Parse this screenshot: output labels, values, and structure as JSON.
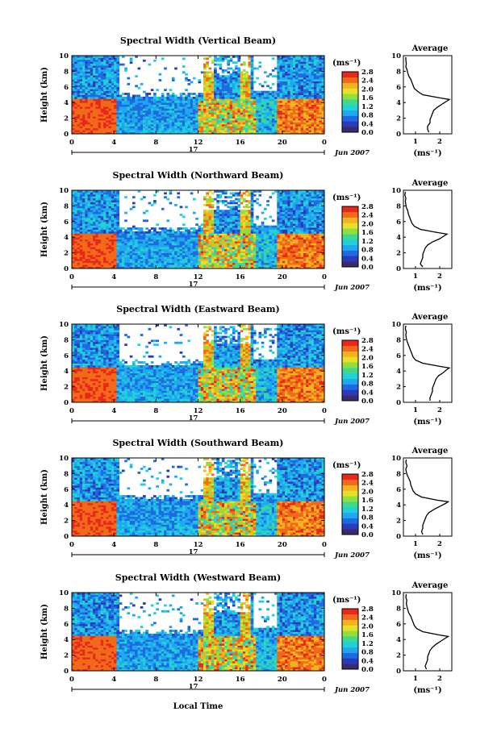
{
  "figure": {
    "xlabel": "Local Time",
    "date_label": "Jun 2007",
    "day_label": "17",
    "colorbar_unit": "(ms⁻¹)",
    "avg_title": "Average",
    "avg_xlabel": "(ms⁻¹)",
    "ylabel": "Height (km)"
  },
  "colors": {
    "scale": [
      "#3a2a6e",
      "#2a3ab8",
      "#1f6ae0",
      "#1fa8f0",
      "#22d0d8",
      "#3ed88f",
      "#8fe03a",
      "#e6e02a",
      "#f5b21f",
      "#f06a1a",
      "#e8281a"
    ],
    "missing": "#ffffff"
  },
  "chart_data": [
    {
      "type": "heatmap",
      "title": "Spectral Width (Vertical Beam)",
      "xlabel": "Local Time",
      "ylabel": "Height (km)",
      "x_ticks": [
        "0",
        "4",
        "8",
        "12",
        "16",
        "20",
        "0"
      ],
      "y_ticks": [
        "0",
        "2",
        "4",
        "6",
        "8",
        "10"
      ],
      "xlim": [
        0,
        24
      ],
      "ylim": [
        0,
        10
      ],
      "colorbar": {
        "label": "(ms⁻¹)",
        "ticks": [
          "0.0",
          "0.4",
          "0.8",
          "1.2",
          "1.6",
          "2.0",
          "2.4",
          "2.8"
        ],
        "range": [
          0,
          2.8
        ]
      },
      "average_profile": {
        "title": "Average",
        "xlabel": "(ms⁻¹)",
        "x_ticks": [
          "1",
          "2"
        ],
        "xlim": [
          0.5,
          2.5
        ],
        "height": [
          0.2,
          0.6,
          1.0,
          1.4,
          1.8,
          2.2,
          2.6,
          3.0,
          3.4,
          3.8,
          4.2,
          4.4,
          4.6,
          5.0,
          5.4,
          5.8,
          6.2,
          6.6,
          7.0,
          7.4,
          7.8,
          8.2,
          8.6,
          9.0,
          9.4,
          9.8
        ],
        "value": [
          1.55,
          1.5,
          1.5,
          1.6,
          1.6,
          1.65,
          1.7,
          1.75,
          1.9,
          2.1,
          2.3,
          2.4,
          2.0,
          1.3,
          1.1,
          0.95,
          0.9,
          0.85,
          0.8,
          0.72,
          0.68,
          0.65,
          0.6,
          0.62,
          0.6,
          0.6
        ]
      }
    },
    {
      "type": "heatmap",
      "title": "Spectral Width (Northward Beam)",
      "xlabel": "Local Time",
      "ylabel": "Height (km)",
      "x_ticks": [
        "0",
        "4",
        "8",
        "12",
        "16",
        "20",
        "0"
      ],
      "y_ticks": [
        "0",
        "2",
        "4",
        "6",
        "8",
        "10"
      ],
      "xlim": [
        0,
        24
      ],
      "ylim": [
        0,
        10
      ],
      "colorbar": {
        "label": "(ms⁻¹)",
        "ticks": [
          "0.0",
          "0.4",
          "0.8",
          "1.2",
          "1.6",
          "2.0",
          "2.4",
          "2.8"
        ],
        "range": [
          0,
          2.8
        ]
      },
      "average_profile": {
        "title": "Average",
        "xlabel": "(ms⁻¹)",
        "x_ticks": [
          "1",
          "2"
        ],
        "xlim": [
          0.5,
          2.5
        ],
        "height": [
          0.2,
          0.6,
          1.0,
          1.4,
          1.8,
          2.2,
          2.6,
          3.0,
          3.4,
          3.8,
          4.2,
          4.4,
          4.6,
          5.0,
          5.4,
          5.8,
          6.2,
          6.6,
          7.0,
          7.4,
          7.8,
          8.2,
          8.6,
          9.0,
          9.4,
          9.8
        ],
        "value": [
          1.3,
          1.2,
          1.25,
          1.3,
          1.3,
          1.35,
          1.4,
          1.5,
          1.7,
          2.0,
          2.2,
          2.3,
          1.9,
          1.2,
          0.95,
          0.85,
          0.8,
          0.75,
          0.7,
          0.68,
          0.62,
          0.6,
          0.58,
          0.6,
          0.56,
          0.58
        ]
      }
    },
    {
      "type": "heatmap",
      "title": "Spectral Width (Eastward Beam)",
      "xlabel": "Local Time",
      "ylabel": "Height (km)",
      "x_ticks": [
        "0",
        "4",
        "8",
        "12",
        "16",
        "20",
        "0"
      ],
      "y_ticks": [
        "0",
        "2",
        "4",
        "6",
        "8",
        "10"
      ],
      "xlim": [
        0,
        24
      ],
      "ylim": [
        0,
        10
      ],
      "colorbar": {
        "label": "(ms⁻¹)",
        "ticks": [
          "0.0",
          "0.4",
          "0.8",
          "1.2",
          "1.6",
          "2.0",
          "2.4",
          "2.8"
        ],
        "range": [
          0,
          2.8
        ]
      },
      "average_profile": {
        "title": "Average",
        "xlabel": "(ms⁻¹)",
        "x_ticks": [
          "1",
          "2"
        ],
        "xlim": [
          0.5,
          2.5
        ],
        "height": [
          0.2,
          0.6,
          1.0,
          1.4,
          1.8,
          2.2,
          2.6,
          3.0,
          3.4,
          3.8,
          4.2,
          4.4,
          4.6,
          5.0,
          5.4,
          5.8,
          6.2,
          6.6,
          7.0,
          7.4,
          7.8,
          8.2,
          8.6,
          9.0,
          9.4,
          9.8
        ],
        "value": [
          1.6,
          1.6,
          1.65,
          1.7,
          1.7,
          1.75,
          1.8,
          1.85,
          1.95,
          2.15,
          2.3,
          2.4,
          2.0,
          1.3,
          1.0,
          0.9,
          0.85,
          0.8,
          0.75,
          0.7,
          0.65,
          0.62,
          0.6,
          0.62,
          0.58,
          0.6
        ]
      }
    },
    {
      "type": "heatmap",
      "title": "Spectral Width (Southward Beam)",
      "xlabel": "Local Time",
      "ylabel": "Height (km)",
      "x_ticks": [
        "0",
        "4",
        "8",
        "12",
        "16",
        "20",
        "0"
      ],
      "y_ticks": [
        "0",
        "2",
        "4",
        "6",
        "8",
        "10"
      ],
      "xlim": [
        0,
        24
      ],
      "ylim": [
        0,
        10
      ],
      "colorbar": {
        "label": "(ms⁻¹)",
        "ticks": [
          "0.0",
          "0.4",
          "0.8",
          "1.2",
          "1.6",
          "2.0",
          "2.4",
          "2.8"
        ],
        "range": [
          0,
          2.8
        ]
      },
      "average_profile": {
        "title": "Average",
        "xlabel": "(ms⁻¹)",
        "x_ticks": [
          "1",
          "2"
        ],
        "xlim": [
          0.5,
          2.5
        ],
        "height": [
          0.2,
          0.6,
          1.0,
          1.4,
          1.8,
          2.2,
          2.6,
          3.0,
          3.4,
          3.8,
          4.2,
          4.4,
          4.6,
          5.0,
          5.4,
          5.8,
          6.2,
          6.6,
          7.0,
          7.4,
          7.8,
          8.2,
          8.6,
          9.0,
          9.4,
          9.8
        ],
        "value": [
          1.3,
          1.25,
          1.3,
          1.3,
          1.35,
          1.4,
          1.45,
          1.55,
          1.75,
          2.0,
          2.25,
          2.35,
          1.9,
          1.25,
          1.0,
          0.9,
          0.85,
          0.8,
          0.78,
          0.72,
          0.66,
          0.62,
          0.6,
          0.65,
          0.6,
          0.62
        ]
      }
    },
    {
      "type": "heatmap",
      "title": "Spectral Width (Westward Beam)",
      "xlabel": "Local Time",
      "ylabel": "Height (km)",
      "x_ticks": [
        "0",
        "4",
        "8",
        "12",
        "16",
        "20",
        "0"
      ],
      "y_ticks": [
        "0",
        "2",
        "4",
        "6",
        "8",
        "10"
      ],
      "xlim": [
        0,
        24
      ],
      "ylim": [
        0,
        10
      ],
      "colorbar": {
        "label": "(ms⁻¹)",
        "ticks": [
          "0.0",
          "0.4",
          "0.8",
          "1.2",
          "1.6",
          "2.0",
          "2.4",
          "2.8"
        ],
        "range": [
          0,
          2.8
        ]
      },
      "average_profile": {
        "title": "Average",
        "xlabel": "(ms⁻¹)",
        "x_ticks": [
          "1",
          "2"
        ],
        "xlim": [
          0.5,
          2.5
        ],
        "height": [
          0.2,
          0.6,
          1.0,
          1.4,
          1.8,
          2.2,
          2.6,
          3.0,
          3.4,
          3.8,
          4.2,
          4.4,
          4.6,
          5.0,
          5.4,
          5.8,
          6.2,
          6.6,
          7.0,
          7.4,
          7.8,
          8.2,
          8.6,
          9.0,
          9.4,
          9.8
        ],
        "value": [
          1.45,
          1.4,
          1.45,
          1.5,
          1.5,
          1.55,
          1.6,
          1.7,
          1.85,
          2.05,
          2.25,
          2.35,
          1.95,
          1.3,
          1.05,
          0.95,
          0.9,
          0.85,
          0.8,
          0.72,
          0.68,
          0.65,
          0.62,
          0.64,
          0.6,
          0.62
        ]
      }
    }
  ]
}
